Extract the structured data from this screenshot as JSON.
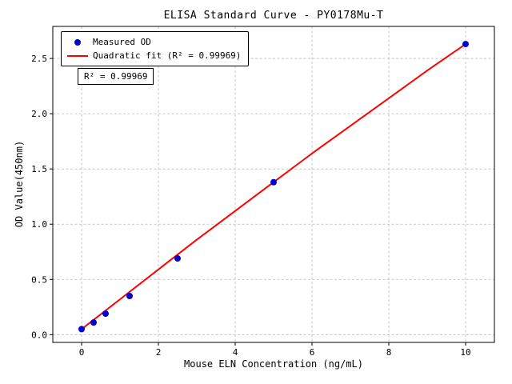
{
  "figure": {
    "background": "#ffffff"
  },
  "chart_data": {
    "type": "scatter",
    "title": "ELISA Standard Curve - PY0178Mu-T",
    "xlabel": "Mouse ELN Concentration (ng/mL)",
    "ylabel": "OD Value(450nm)",
    "xlim": [
      -0.75,
      10.75
    ],
    "ylim": [
      -0.07,
      2.79
    ],
    "xticks": [
      0,
      2,
      4,
      6,
      8,
      10
    ],
    "yticks": [
      0,
      0.5,
      1,
      1.5,
      2,
      2.5
    ],
    "grid": true,
    "grid_style": "dashed",
    "legend_position": "upper-left",
    "annotation": "R² = 0.99969",
    "colors": {
      "measured": "#0000CD",
      "fit": "#FF0000",
      "grid": "#BBBBBB",
      "axis": "#000000",
      "background": "#FFFFFF"
    },
    "series": [
      {
        "name": "Measured OD",
        "kind": "scatter",
        "color": "#0000CD",
        "x": [
          0,
          0.3125,
          0.625,
          1.25,
          2.5,
          5,
          10
        ],
        "y": [
          0.05,
          0.11,
          0.19,
          0.35,
          0.69,
          1.38,
          2.63
        ]
      },
      {
        "name": "Quadratic fit (R² = 0.99969)",
        "kind": "line",
        "color": "#FF0000",
        "x": [
          0,
          1,
          2,
          3,
          4,
          5,
          6,
          7,
          8,
          9,
          10
        ],
        "y": [
          0.05,
          0.32,
          0.59,
          0.86,
          1.12,
          1.38,
          1.64,
          1.89,
          2.14,
          2.39,
          2.63
        ]
      }
    ]
  }
}
